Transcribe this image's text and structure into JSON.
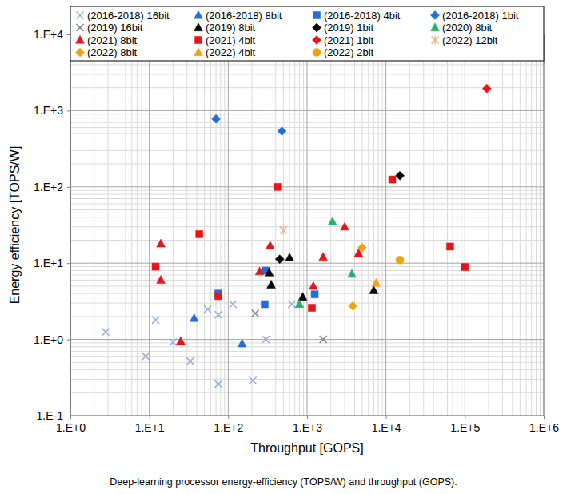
{
  "chart_data": {
    "type": "scatter",
    "title": "Deep-learning processor energy-efficiency (TOPS/W) and throughput (GOPS).",
    "x_label": "Throughput [GOPS]",
    "y_label": "Energy efficiency [TOPS/W]",
    "log": true,
    "grid": true,
    "legend": "top",
    "xlim": [
      1,
      1000000
    ],
    "ylim": [
      0.1,
      10000
    ],
    "xticks": [
      {
        "value": 1,
        "label": "1.E+0"
      },
      {
        "value": 10,
        "label": "1.E+1"
      },
      {
        "value": 100,
        "label": "1.E+2"
      },
      {
        "value": 1000,
        "label": "1.E+3"
      },
      {
        "value": 10000,
        "label": "1.E+4"
      },
      {
        "value": 100000,
        "label": "1.E+5"
      },
      {
        "value": 1000000,
        "label": "1.E+6"
      }
    ],
    "yticks": [
      {
        "value": 0.1,
        "label": "1.E-1"
      },
      {
        "value": 1,
        "label": "1.E+0"
      },
      {
        "value": 10,
        "label": "1.E+1"
      },
      {
        "value": 100,
        "label": "1.E+2"
      },
      {
        "value": 1000,
        "label": "1.E+3"
      },
      {
        "value": 10000,
        "label": "1.E+4"
      }
    ],
    "minor_xticks": [
      2,
      3,
      4,
      5,
      6,
      7,
      8,
      9,
      20,
      30,
      40,
      50,
      60,
      70,
      80,
      90,
      200,
      300,
      400,
      500,
      600,
      700,
      800,
      900,
      2000,
      3000,
      4000,
      5000,
      6000,
      7000,
      8000,
      9000,
      20000,
      30000,
      40000,
      50000,
      60000,
      70000,
      80000,
      90000,
      200000,
      300000,
      400000,
      500000,
      600000,
      700000,
      800000,
      900000
    ],
    "minor_yticks": [
      0.2,
      0.3,
      0.4,
      0.5,
      0.6,
      0.7,
      0.8,
      0.9,
      2,
      3,
      4,
      5,
      6,
      7,
      8,
      9,
      20,
      30,
      40,
      50,
      60,
      70,
      80,
      90,
      200,
      300,
      400,
      500,
      600,
      700,
      800,
      900,
      2000,
      3000,
      4000,
      5000,
      6000,
      7000,
      8000,
      9000
    ],
    "series": [
      {
        "name": "(2016-2018) 16bit",
        "color": "#8faadc",
        "marker": "x",
        "x": [
          2.8,
          9,
          12,
          20,
          33,
          55,
          75,
          75,
          115,
          205,
          300,
          640
        ],
        "values": [
          1.25,
          0.6,
          1.8,
          0.92,
          0.52,
          2.5,
          2.1,
          0.26,
          2.9,
          0.29,
          1.0,
          2.9
        ]
      },
      {
        "name": "(2016-2018) 8bit",
        "color": "#1f6fdc",
        "marker": "triangle",
        "x": [
          37,
          150
        ],
        "values": [
          1.9,
          0.88
        ]
      },
      {
        "name": "(2016-2018) 4bit",
        "color": "#1f6fdc",
        "marker": "square",
        "x": [
          75,
          300,
          290,
          1250
        ],
        "values": [
          4.0,
          8.0,
          2.9,
          3.9
        ]
      },
      {
        "name": "(2016-2018) 1bit",
        "color": "#1f6fdc",
        "marker": "diamond",
        "x": [
          70,
          480
        ],
        "values": [
          780,
          540
        ]
      },
      {
        "name": "(2019) 16bit",
        "color": "#7f7f7f",
        "marker": "x",
        "x": [
          220,
          1600
        ],
        "values": [
          2.2,
          1.0
        ]
      },
      {
        "name": "(2019) 8bit",
        "color": "#000000",
        "marker": "triangle",
        "x": [
          330,
          350,
          600,
          880,
          7000
        ],
        "values": [
          7.5,
          5.2,
          11.8,
          3.6,
          4.4
        ]
      },
      {
        "name": "(2019) 1bit",
        "color": "#000000",
        "marker": "diamond",
        "x": [
          450,
          15000
        ],
        "values": [
          11.3,
          140
        ]
      },
      {
        "name": "(2020) 8bit",
        "color": "#21b36b",
        "marker": "triangle",
        "x": [
          2100,
          800,
          3700
        ],
        "values": [
          35,
          2.9,
          7.2
        ]
      },
      {
        "name": "(2021) 8bit",
        "color": "#e8141a",
        "marker": "triangle",
        "x": [
          14,
          14,
          25,
          250,
          340,
          1600,
          3000,
          4500,
          1200
        ],
        "values": [
          18,
          6,
          0.95,
          7.8,
          17,
          12,
          30,
          13.5,
          5.0
        ]
      },
      {
        "name": "(2021) 4bit",
        "color": "#e8141a",
        "marker": "square",
        "x": [
          12,
          43,
          75,
          420,
          1150,
          12000,
          65000,
          100000
        ],
        "values": [
          9,
          24,
          3.7,
          100,
          2.6,
          125,
          16.5,
          8.9
        ]
      },
      {
        "name": "(2021) 1bit",
        "color": "#e8141a",
        "marker": "diamond",
        "x": [
          190000
        ],
        "values": [
          1950
        ]
      },
      {
        "name": "(2022) 12bit",
        "color": "#f4b183",
        "marker": "asterisk",
        "x": [
          500
        ],
        "values": [
          27
        ]
      },
      {
        "name": "(2022) 8bit",
        "color": "#f0a30a",
        "marker": "diamond",
        "x": [
          5000,
          3800
        ],
        "values": [
          16,
          2.75
        ]
      },
      {
        "name": "(2022) 4bit",
        "color": "#f0a30a",
        "marker": "triangle",
        "x": [
          7500
        ],
        "values": [
          5.5
        ]
      },
      {
        "name": "(2022) 2bit",
        "color": "#f0a30a",
        "marker": "circle",
        "x": [
          15000
        ],
        "values": [
          11
        ]
      }
    ]
  }
}
